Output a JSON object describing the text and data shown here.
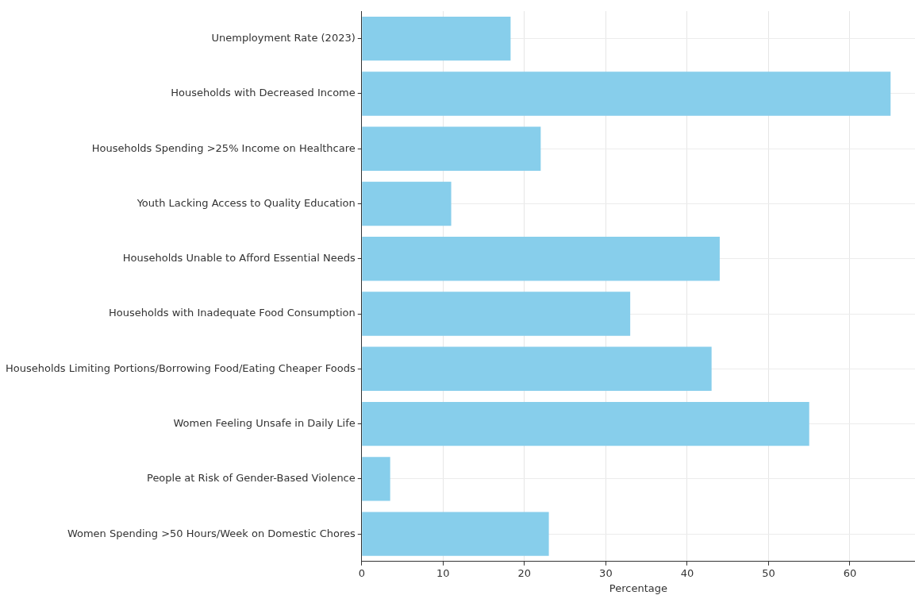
{
  "chart_data": {
    "type": "bar",
    "orientation": "horizontal",
    "xlabel": "Percentage",
    "categories": [
      "Unemployment Rate (2023)",
      "Households with Decreased Income",
      "Households Spending >25% Income on Healthcare",
      "Youth Lacking Access to Quality Education",
      "Households Unable to Afford Essential Needs",
      "Households with Inadequate Food Consumption",
      "Households Limiting Portions/Borrowing Food/Eating Cheaper Foods",
      "Women Feeling Unsafe in Daily Life",
      "People at Risk of Gender-Based Violence",
      "Women Spending >50 Hours/Week on Domestic Chores"
    ],
    "values": [
      18.3,
      65,
      22,
      11,
      44,
      33,
      43,
      55,
      3.5,
      23
    ],
    "color": "#87ceeb",
    "xlim": [
      0,
      68
    ],
    "xticks": [
      0,
      10,
      20,
      30,
      40,
      50,
      60
    ],
    "grid": true
  }
}
